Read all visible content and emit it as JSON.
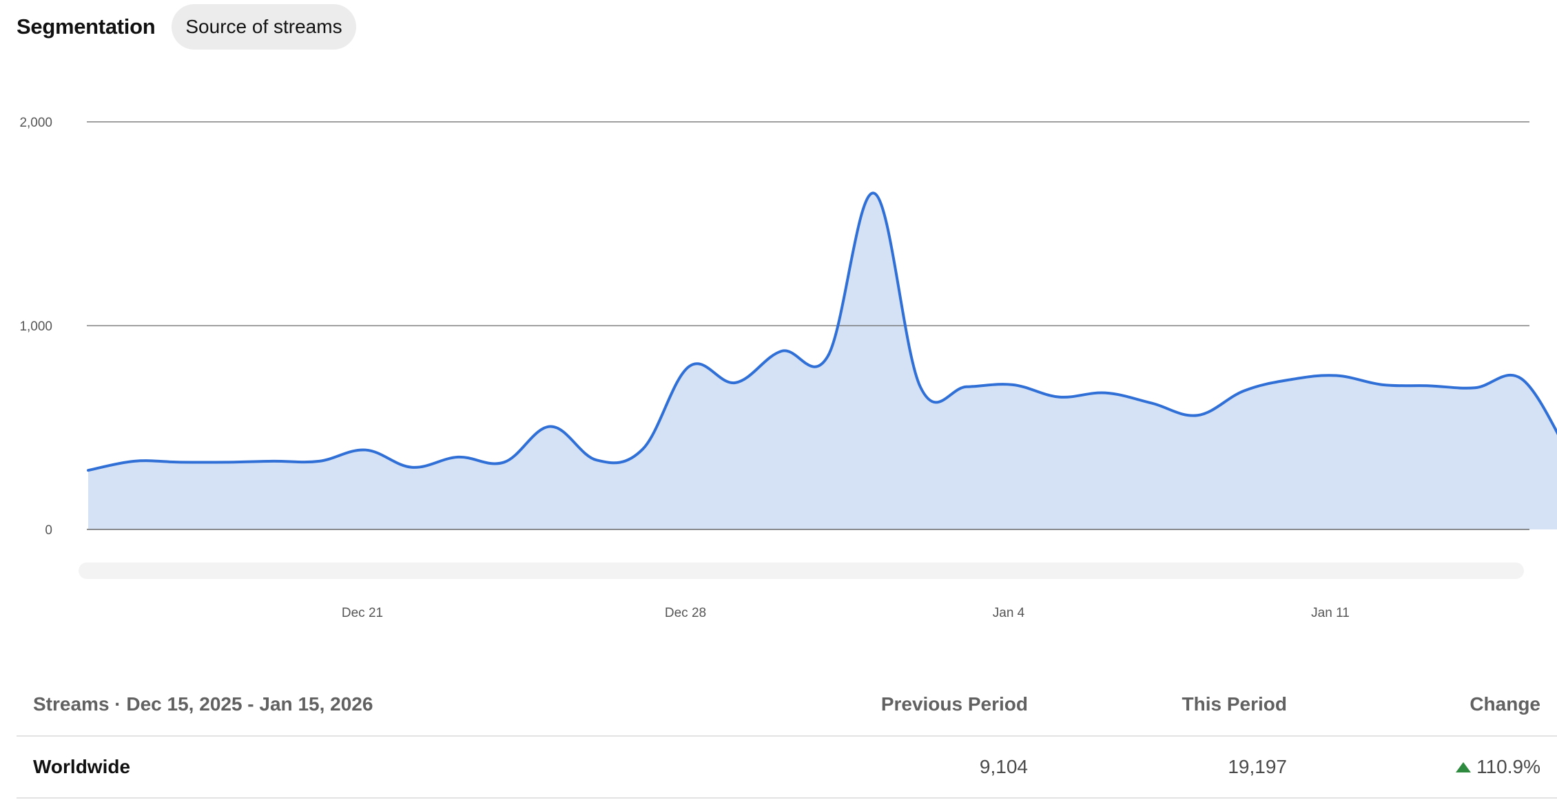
{
  "header": {
    "title": "Segmentation",
    "chip_label": "Source of streams"
  },
  "colors": {
    "line": "#2f6fd6",
    "area": "#d5e2f5",
    "grid": "#666666",
    "positive": "#2e8a3e"
  },
  "chart_data": {
    "type": "area",
    "title": "",
    "xlabel": "",
    "ylabel": "",
    "ylim": [
      0,
      2000
    ],
    "yticks": [
      "0",
      "1,000",
      "2,000"
    ],
    "grid": true,
    "legend": "none",
    "x_ticks": [
      "Dec 21",
      "Dec 28",
      "Jan 4",
      "Jan 11"
    ],
    "series": [
      {
        "x": [
          "2025-12-15",
          "2025-12-16",
          "2025-12-17",
          "2025-12-18",
          "2025-12-19",
          "2025-12-20",
          "2025-12-21",
          "2025-12-22",
          "2025-12-23",
          "2025-12-24",
          "2025-12-25",
          "2025-12-26",
          "2025-12-27",
          "2025-12-28",
          "2025-12-29",
          "2025-12-30",
          "2025-12-31",
          "2026-01-01",
          "2026-01-02",
          "2026-01-03",
          "2026-01-04",
          "2026-01-05",
          "2026-01-06",
          "2026-01-07",
          "2026-01-08",
          "2026-01-09",
          "2026-01-10",
          "2026-01-11",
          "2026-01-12",
          "2026-01-13",
          "2026-01-14",
          "2026-01-15"
        ],
        "values": [
          290,
          335,
          330,
          330,
          335,
          335,
          390,
          305,
          355,
          330,
          505,
          340,
          395,
          800,
          720,
          875,
          850,
          1650,
          700,
          700,
          710,
          650,
          670,
          620,
          560,
          680,
          735,
          755,
          710,
          705,
          695,
          740
        ]
      }
    ],
    "last_partial_value": 390
  },
  "table": {
    "header": {
      "label": "Streams · Dec 15, 2025 - Jan 15, 2026",
      "previous": "Previous Period",
      "this": "This Period",
      "change": "Change"
    },
    "rows": [
      {
        "name": "Worldwide",
        "previous": "9,104",
        "this": "19,197",
        "change": "110.9%",
        "trend": "up-arrow-icon"
      }
    ]
  }
}
